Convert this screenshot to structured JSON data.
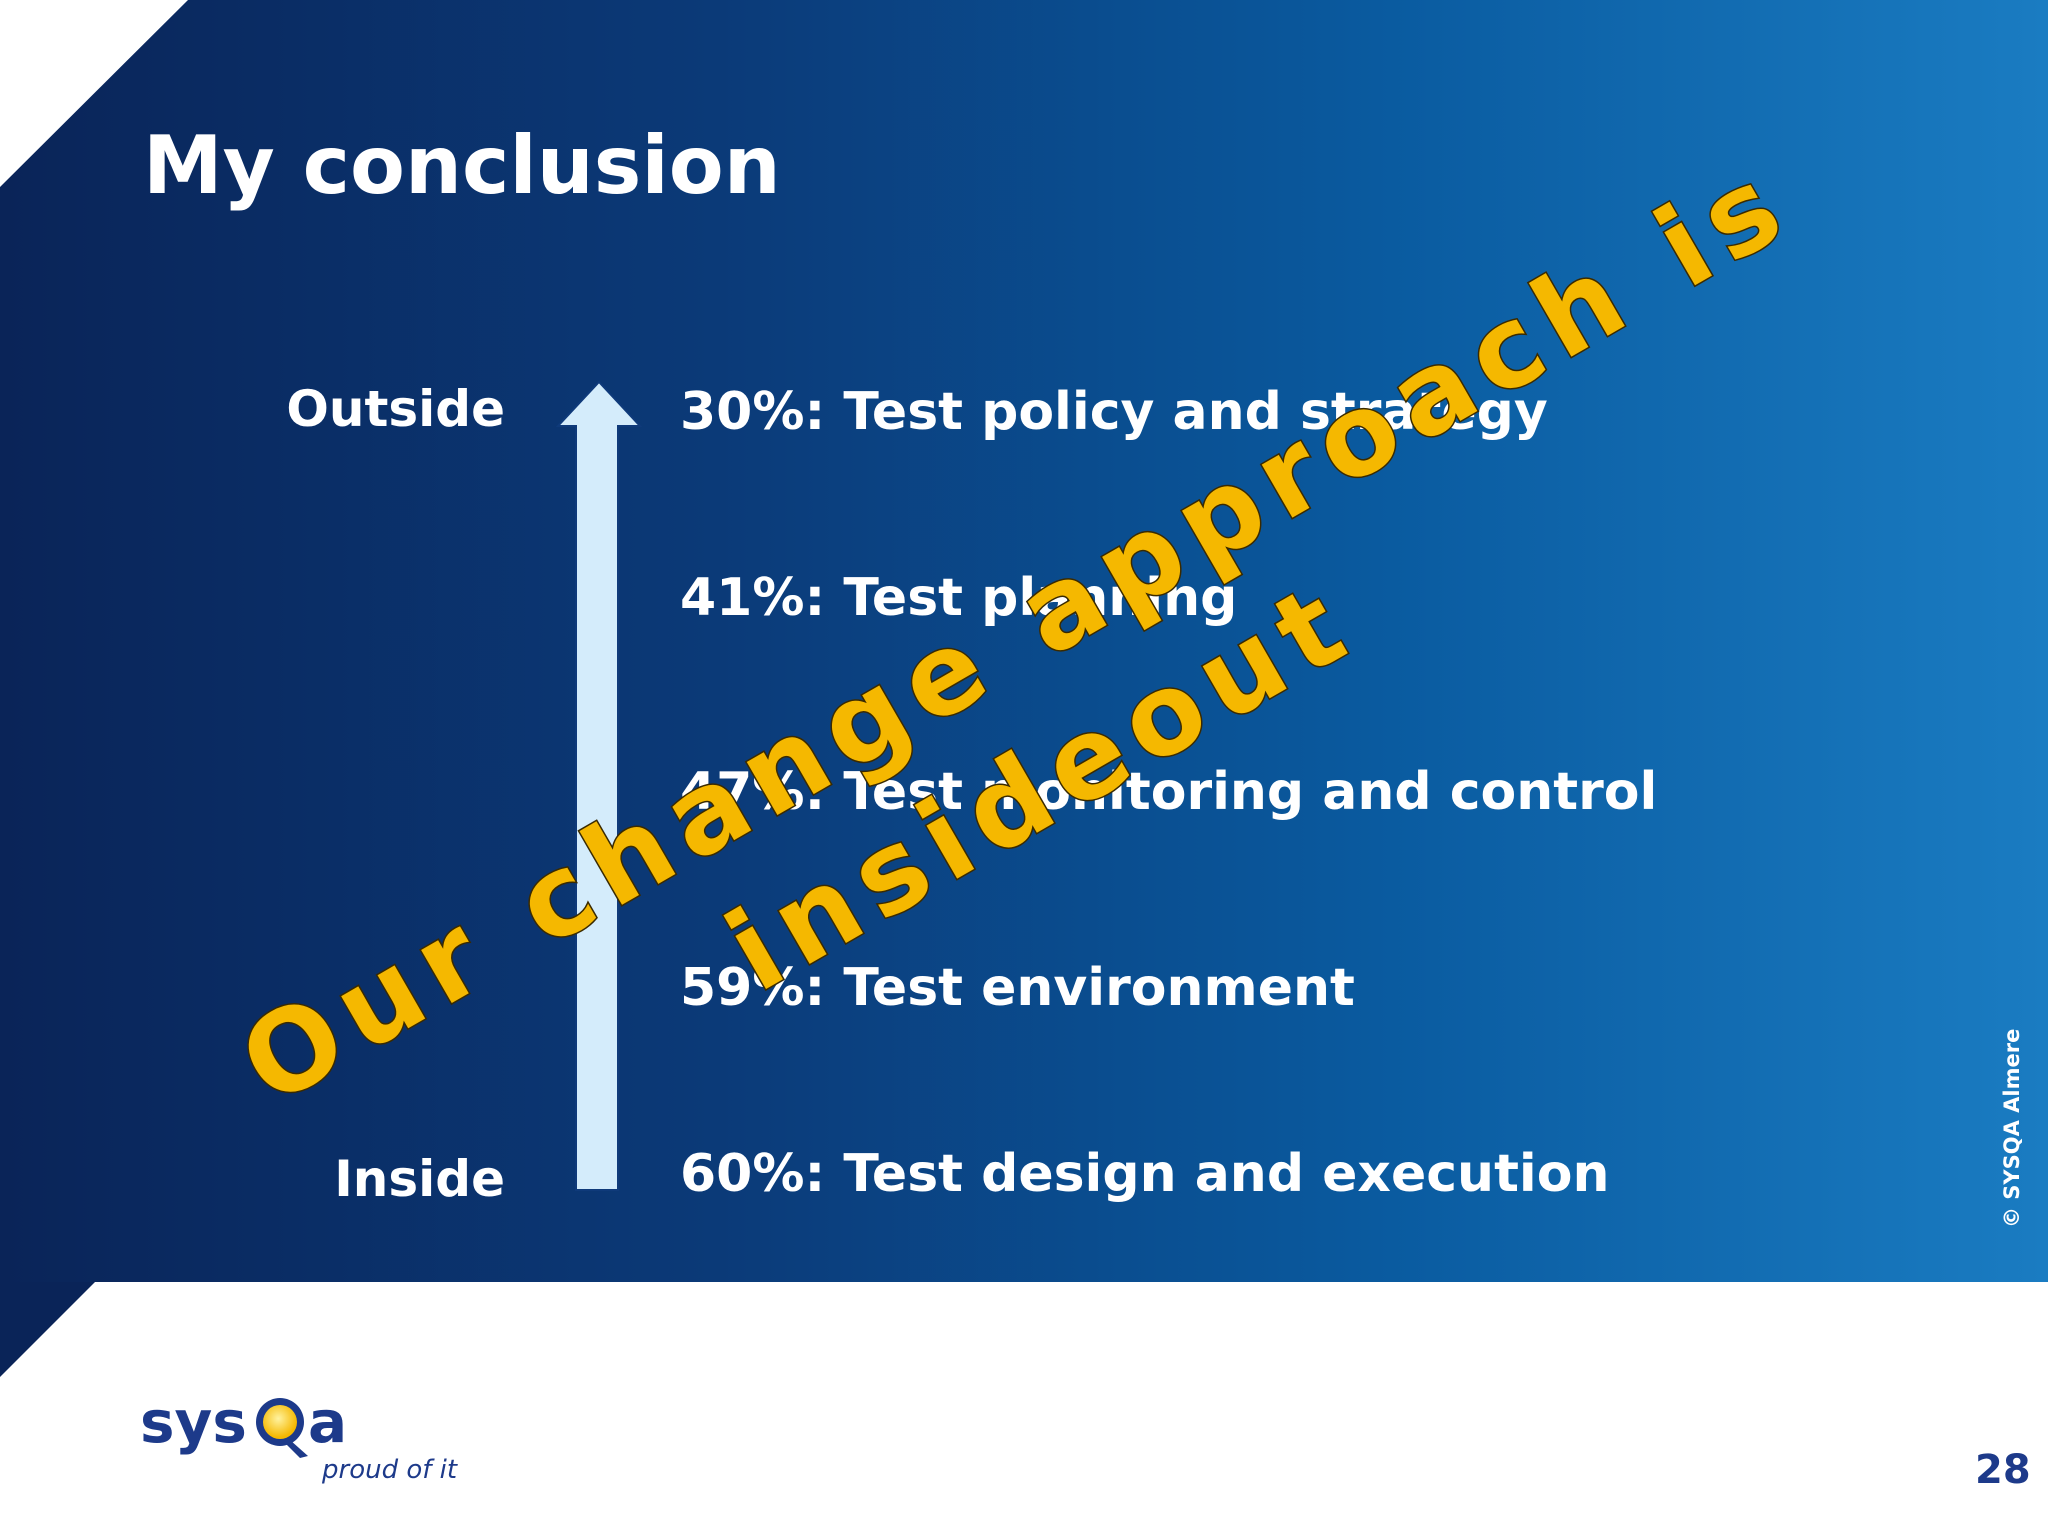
{
  "slide": {
    "title": "My conclusion",
    "axis_top_label": "Outside",
    "axis_bottom_label": "Inside",
    "items": [
      "30%: Test policy and strategy",
      "41%: Test planning",
      "47%: Test monitoring and control",
      "59%: Test environment",
      "60%: Test design and execution"
    ],
    "overlay_line1": "Our change approach is",
    "overlay_line2": "insideout",
    "copyright": "© SYSQA Almere",
    "page_number": "28"
  },
  "logo": {
    "brand": "sysQa",
    "tagline": "proud of it"
  },
  "colors": {
    "background_dark": "#0a2458",
    "background_light": "#1a7cc2",
    "arrow": "#d4ecfb",
    "overlay_text": "#f5b800",
    "logo_blue": "#1d3a8a",
    "logo_yellow": "#f5b800"
  }
}
